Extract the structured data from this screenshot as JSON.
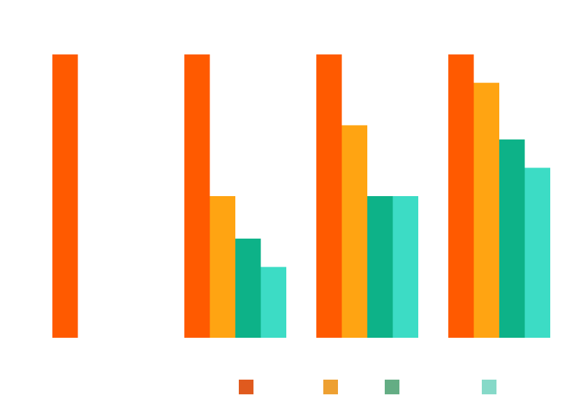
{
  "chart_data": {
    "type": "bar",
    "categories": [
      "",
      "",
      "",
      ""
    ],
    "series": [
      {
        "color": "#FF5A00",
        "legend_color": "#E05A1E",
        "values": [
          100,
          100,
          100,
          100
        ]
      },
      {
        "color": "#FFA412",
        "legend_color": "#EEA031",
        "values": [
          0,
          50,
          75,
          90
        ]
      },
      {
        "color": "#0DB288",
        "legend_color": "#64AD84",
        "values": [
          0,
          35,
          50,
          70
        ]
      },
      {
        "color": "#3CDCC5",
        "legend_color": "#86D9C8",
        "values": [
          0,
          25,
          50,
          60
        ]
      }
    ],
    "ylim": [
      0,
      100
    ],
    "grid": false,
    "legend_position": "bottom",
    "title": "",
    "xlabel": "",
    "ylabel": ""
  }
}
